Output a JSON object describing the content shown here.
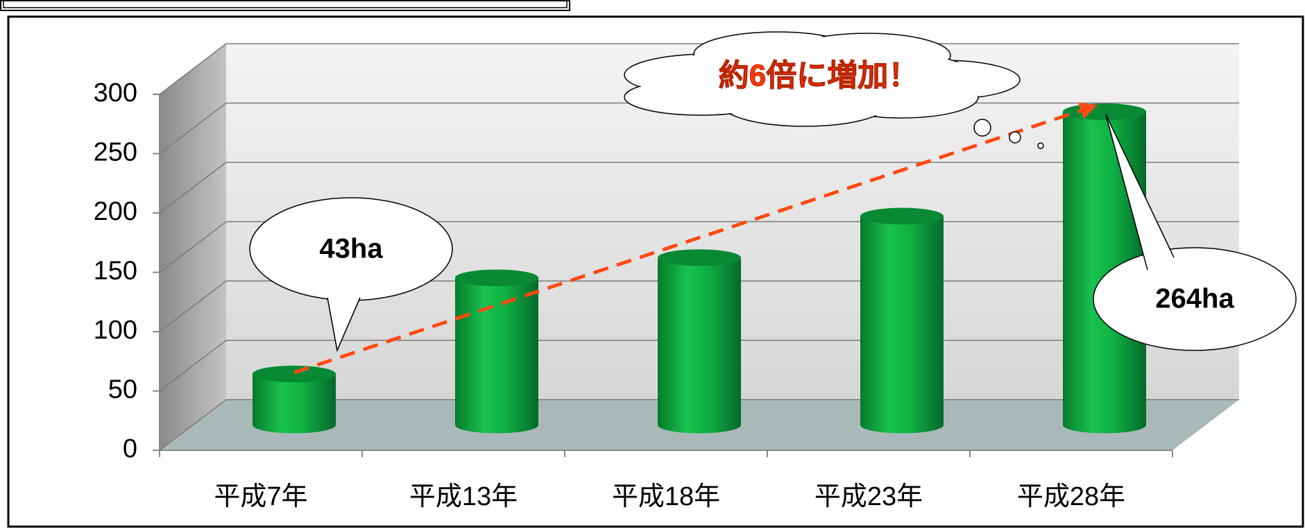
{
  "chart_data": {
    "type": "bar",
    "categories": [
      "平成7年",
      "平成13年",
      "平成18年",
      "平成23年",
      "平成28年"
    ],
    "values": [
      43,
      124,
      141,
      176,
      264
    ],
    "value_labels": [
      "43ha",
      null,
      null,
      null,
      "264ha"
    ],
    "color": "#0aa63c",
    "ylim": [
      0,
      300
    ],
    "yticks": [
      0,
      50,
      100,
      150,
      200,
      250,
      300
    ],
    "grid": true,
    "annotation": "約6倍に増加！"
  }
}
